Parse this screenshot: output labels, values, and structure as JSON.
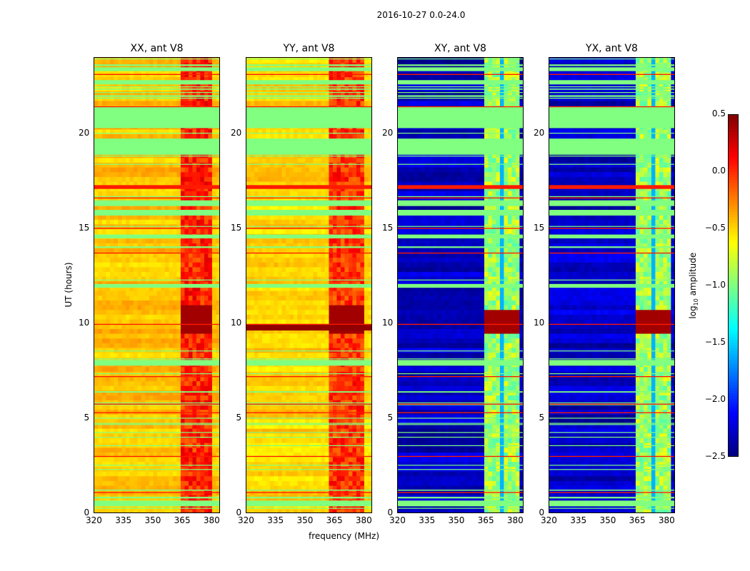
{
  "chart_data": {
    "type": "heatmap",
    "title": "2016-10-27 0.0-24.0",
    "xlabel": "frequency (MHz)",
    "ylabel": "UT (hours)",
    "xlim": [
      320,
      384.4
    ],
    "ylim": [
      0,
      24
    ],
    "xticks": [
      320,
      335,
      350,
      365,
      380
    ],
    "yticks": [
      0,
      5,
      10,
      15,
      20
    ],
    "colormap": "jet",
    "colorbar": {
      "label": "log",
      "label_sub": "10",
      "label_rest": " amplitude",
      "range": [
        -2.5,
        0.5
      ],
      "ticks": [
        "0.5",
        "0.0",
        "−0.5",
        "−1.0",
        "−1.5",
        "−2.0",
        "−2.5"
      ],
      "tick_values": [
        0.5,
        0.0,
        -0.5,
        -1.0,
        -1.5,
        -2.0,
        -2.5
      ]
    },
    "panels": [
      {
        "title": "XX, ant V8",
        "kind": "parallel",
        "base_level": -0.45,
        "rfi_band_mhz": [
          363,
          380
        ],
        "rfi_level": -0.05,
        "strong_hours": [
          9.3,
          10.8
        ],
        "strong_level": 0.4
      },
      {
        "title": "YY, ant V8",
        "kind": "parallel",
        "base_level": -0.5,
        "rfi_band_mhz": [
          362,
          380
        ],
        "rfi_level": -0.1,
        "strong_hours": [
          9.5,
          10.8
        ],
        "strong_level": 0.4
      },
      {
        "title": "XY, ant V8",
        "kind": "cross",
        "base_level": -2.3,
        "rfi_band_mhz": [
          363,
          381
        ],
        "rfi_level": -0.9,
        "strong_hours": [
          9.3,
          10.6
        ],
        "strong_level": 0.4
      },
      {
        "title": "YX, ant V8",
        "kind": "cross",
        "base_level": -2.3,
        "rfi_band_mhz": [
          363,
          381
        ],
        "rfi_level": -0.9,
        "strong_hours": [
          9.3,
          10.6
        ],
        "strong_level": 0.4
      }
    ],
    "flagged_hours": [
      [
        0.4,
        0.7
      ],
      [
        18.9,
        19.75
      ],
      [
        20.3,
        21.45
      ],
      [
        15.7,
        16.0
      ],
      [
        16.2,
        16.5
      ],
      [
        7.8,
        8.1
      ],
      [
        11.9,
        12.1
      ],
      [
        14.5,
        14.7
      ],
      [
        22.6,
        22.8
      ],
      [
        23.3,
        23.5
      ]
    ],
    "flagged_level": -1.0,
    "rfi_line_hours": [
      23.1,
      21.4,
      17.1,
      16.6,
      15.0,
      13.7,
      9.95,
      7.2,
      5.75,
      5.3,
      3.0,
      1.1
    ],
    "rfi_line_level": 0.05
  }
}
